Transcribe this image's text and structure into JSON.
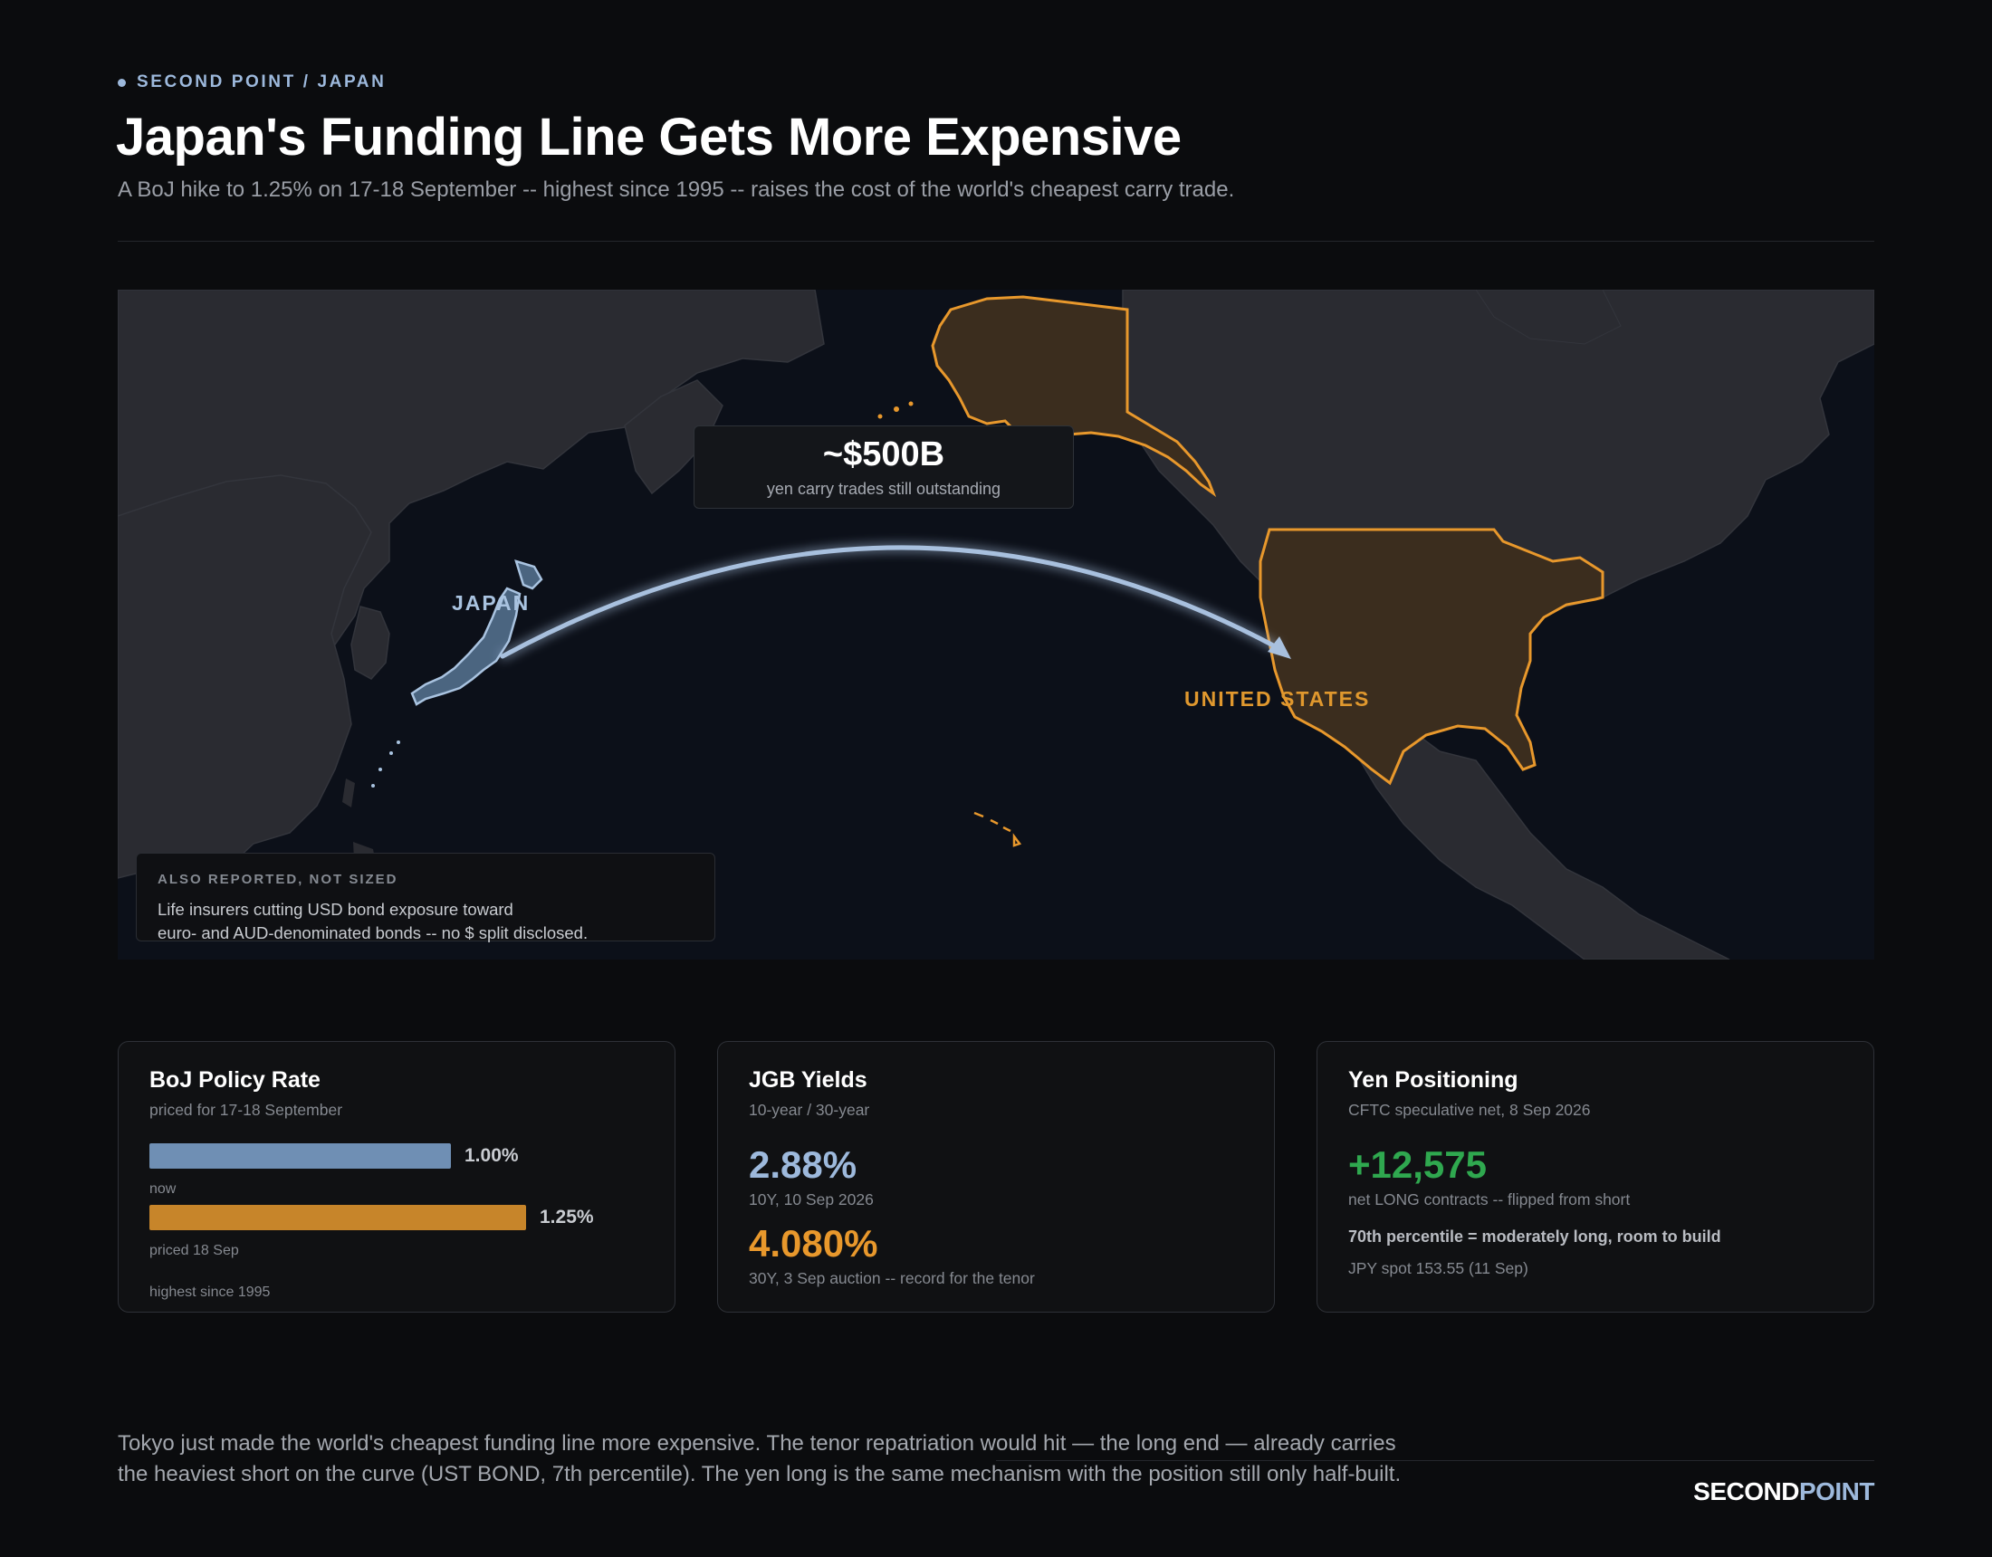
{
  "header": {
    "kicker": "SECOND POINT / JAPAN",
    "title": "Japan's Funding Line Gets More Expensive",
    "subtitle": "A BoJ hike to 1.25% on 17-18 September -- highest since 1995 -- raises the cost of the world's cheapest carry trade."
  },
  "map": {
    "callout_value": "~$500B",
    "callout_label": "yen carry trades still outstanding",
    "label_japan": "JAPAN",
    "label_us": "UNITED STATES",
    "colors": {
      "japan": "#8fb0d6",
      "united_states": "#e8982c",
      "arrow": "#a8c0de",
      "land": "#2a2b31",
      "ocean": "#0c1019"
    },
    "note_heading": "ALSO REPORTED, NOT SIZED",
    "note_line1": "Life insurers cutting USD bond exposure toward",
    "note_line2": "euro- and AUD-denominated bonds -- no $ split disclosed."
  },
  "cards": {
    "boj": {
      "title": "BoJ Policy Rate",
      "subtitle": "priced for 17-18 September",
      "bars": [
        {
          "value": 1.0,
          "value_label": "1.00%",
          "caption": "now",
          "color": "#6f8fb4"
        },
        {
          "value": 1.25,
          "value_label": "1.25%",
          "caption": "priced 18 Sep",
          "color": "#c7852a"
        }
      ],
      "footnote": "highest since 1995"
    },
    "jgb": {
      "title": "JGB Yields",
      "subtitle": "10-year / 30-year",
      "y10_value": "2.88%",
      "y10_caption": "10Y, 10 Sep 2026",
      "y30_value": "4.080%",
      "y30_caption": "30Y, 3 Sep auction -- record for the tenor",
      "colors": {
        "y10": "#9db9dc",
        "y30": "#e8982c"
      }
    },
    "yen": {
      "title": "Yen Positioning",
      "subtitle": "CFTC speculative net, 8 Sep 2026",
      "value": "+12,575",
      "caption": "net LONG contracts -- flipped from short",
      "note": "70th percentile = moderately long, room to build",
      "spot": "JPY spot 153.55 (11 Sep)",
      "color": "#2fa84f"
    }
  },
  "footer": {
    "line1": "Tokyo just made the world's cheapest funding line more expensive. The tenor repatriation would hit — the long end — already carries",
    "line2": "the heaviest short on the curve (UST BOND, 7th percentile). The yen long is the same mechanism with the position still only half-built.",
    "brand_a": "SECOND",
    "brand_b": "POINT"
  }
}
